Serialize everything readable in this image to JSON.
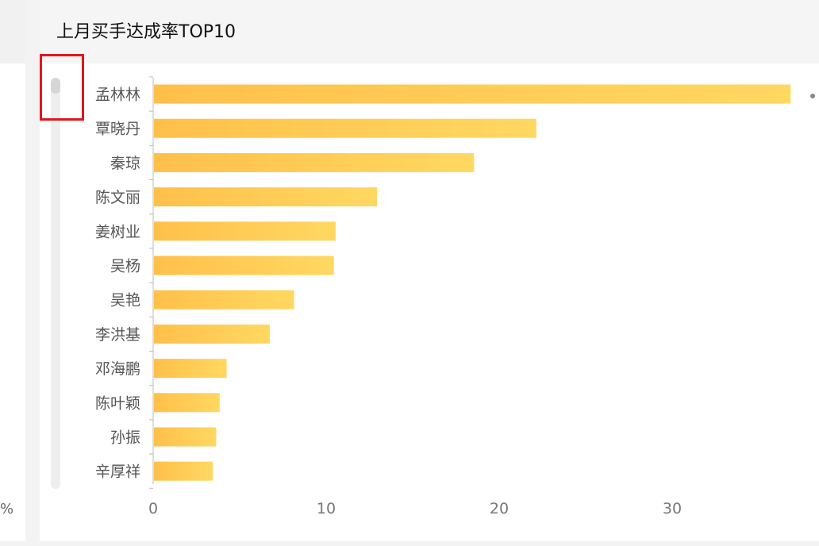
{
  "left_panel": {
    "fragment_text": "%"
  },
  "title": "上月买手达成率TOP10",
  "chart_data": {
    "type": "bar",
    "orientation": "horizontal",
    "categories": [
      "孟林林",
      "覃晓丹",
      "秦琼",
      "陈文丽",
      "姜树业",
      "吴杨",
      "吴艳",
      "李洪基",
      "邓海鹏",
      "陈叶颖",
      "孙振",
      "辛厚祥"
    ],
    "values": [
      36.8,
      22.1,
      18.5,
      12.9,
      10.5,
      10.4,
      8.1,
      6.7,
      4.2,
      3.8,
      3.6,
      3.4
    ],
    "xticks": [
      0,
      10,
      20,
      30
    ],
    "xlim": [
      0,
      37.6
    ],
    "grid": false,
    "bar_color_start": "#ffc04a",
    "bar_color_end": "#ffd861"
  }
}
